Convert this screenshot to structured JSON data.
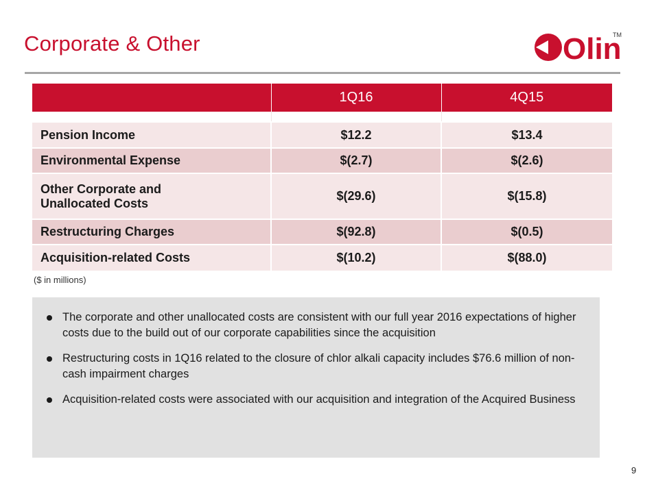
{
  "title": "Corporate & Other",
  "logo": {
    "text": "Olin",
    "trademark": "TM",
    "color": "#c8102e"
  },
  "table": {
    "headers": [
      "",
      "1Q16",
      "4Q15"
    ],
    "rows": [
      {
        "label": "Pension Income",
        "label_line2": "",
        "q1_16": "$12.2",
        "q4_15": "$13.4"
      },
      {
        "label": "Environmental Expense",
        "label_line2": "",
        "q1_16": "$(2.7)",
        "q4_15": "$(2.6)"
      },
      {
        "label": "Other Corporate and",
        "label_line2": "Unallocated Costs",
        "q1_16": "$(29.6)",
        "q4_15": "$(15.8)"
      },
      {
        "label": "Restructuring Charges",
        "label_line2": "",
        "q1_16": "$(92.8)",
        "q4_15": "$(0.5)"
      },
      {
        "label": "Acquisition-related Costs",
        "label_line2": "",
        "q1_16": "$(10.2)",
        "q4_15": "$(88.0)"
      }
    ]
  },
  "units_note": "($ in millions)",
  "notes": [
    "The corporate and other unallocated costs are consistent with our full year 2016 expectations of higher costs due to the build out of our corporate capabilities since the acquisition",
    "Restructuring costs in 1Q16 related to the closure of chlor alkali capacity includes $76.6 million of non-cash impairment charges",
    "Acquisition-related costs were associated with our acquisition and integration of the Acquired Business"
  ],
  "page_number": "9",
  "colors": {
    "accent": "#c8102e",
    "row_light": "#f5e6e7",
    "row_dark": "#eacdcf",
    "notes_bg": "#e1e1e1"
  }
}
